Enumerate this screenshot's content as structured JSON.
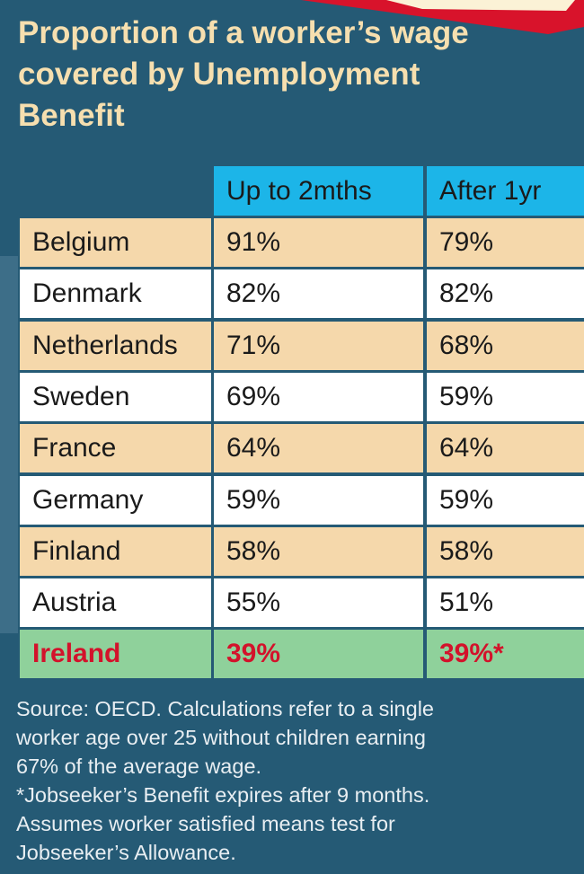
{
  "header": {
    "title": "Proportion of a worker’s wage covered by Unemployment Benefit"
  },
  "table": {
    "columns": [
      "Up to 2mths",
      "After 1yr"
    ],
    "rows": [
      [
        "Belgium",
        "91%",
        "79%"
      ],
      [
        "Denmark",
        "82%",
        "82%"
      ],
      [
        "Netherlands",
        "71%",
        "68%"
      ],
      [
        "Sweden",
        "69%",
        "59%"
      ],
      [
        "France",
        "64%",
        "64%"
      ],
      [
        "Germany",
        "59%",
        "59%"
      ],
      [
        "Finland",
        "58%",
        "58%"
      ],
      [
        "Austria",
        "55%",
        "51%"
      ],
      [
        "Ireland",
        "39%",
        "39%*"
      ]
    ]
  },
  "footnote": {
    "lines": [
      "Source: OECD. Calculations refer to a single",
      "worker age over 25 without children earning",
      "67% of the average wage.",
      "*Jobseeker’s Benefit expires after 9 months.",
      "Assumes worker satisfied means test for",
      "Jobseeker’s Allowance."
    ]
  }
}
